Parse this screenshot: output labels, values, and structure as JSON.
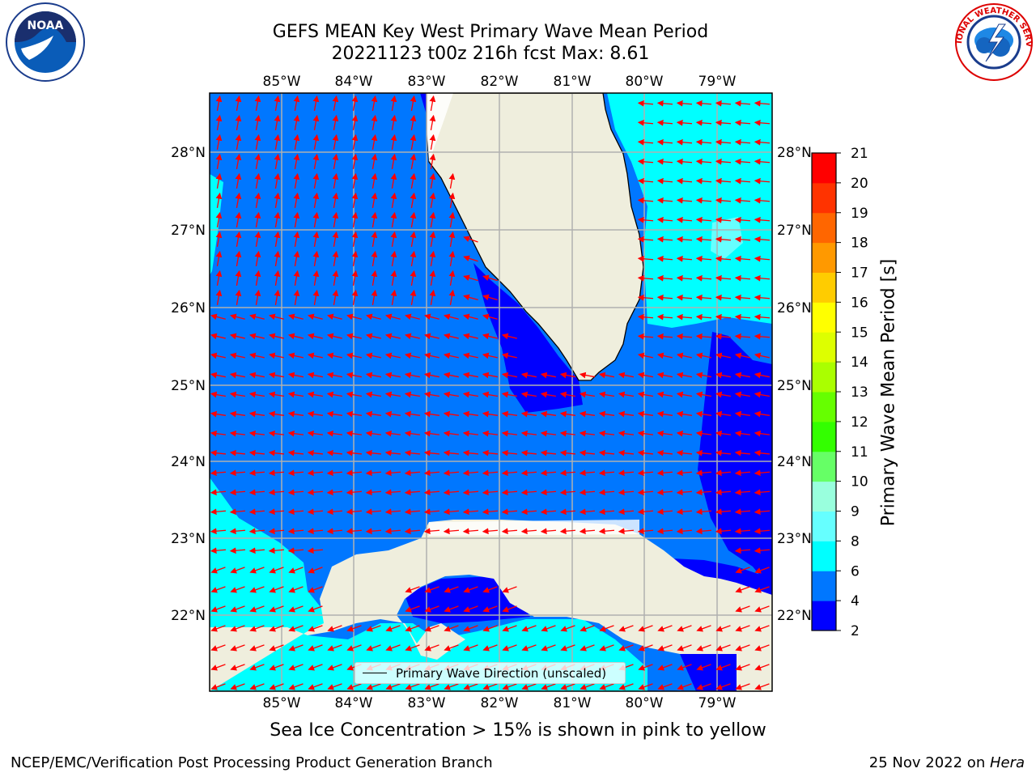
{
  "title": {
    "line1": "GEFS MEAN Key West Primary Wave Mean Period",
    "line2": "20221123 t00z 216h fcst   Max: 8.61"
  },
  "logos": {
    "noaa_text": "NOAA",
    "nws_text": "NATIONAL WEATHER SERVICE"
  },
  "map": {
    "lon_labels": [
      "85°W",
      "84°W",
      "83°W",
      "82°W",
      "81°W",
      "80°W",
      "79°W"
    ],
    "lat_labels": [
      "28°N",
      "27°N",
      "26°N",
      "25°N",
      "24°N",
      "23°N",
      "22°N"
    ],
    "icons": [
      "florida-landmass",
      "cuba-landmass",
      "wave-direction-arrow"
    ],
    "colors": {
      "land": "#efeedd",
      "period_2_4": "#0000ff",
      "period_4_6": "#0077ff",
      "period_6_8": "#00ffff",
      "period_8_9": "#66ffff",
      "arrow": "#ff0000",
      "grid": "#b0b0b0"
    }
  },
  "legend": {
    "label": "Primary Wave Direction (unscaled)"
  },
  "colorbar": {
    "label": "Primary Wave Mean Period [s]",
    "ticks": [
      "2",
      "4",
      "6",
      "8",
      "9",
      "10",
      "11",
      "12",
      "13",
      "14",
      "15",
      "16",
      "17",
      "18",
      "19",
      "20",
      "21"
    ],
    "colors": [
      "#0000ff",
      "#0077ff",
      "#00ffff",
      "#66ffff",
      "#99ffdd",
      "#66ff66",
      "#33ff00",
      "#66ff00",
      "#aaff00",
      "#ddff00",
      "#ffff00",
      "#ffcc00",
      "#ff9900",
      "#ff6600",
      "#ff3300",
      "#ff0000"
    ]
  },
  "notes": {
    "ice": "Sea Ice Concentration > 15% is shown in pink to yellow"
  },
  "footer": {
    "left": "NCEP/EMC/Verification Post Processing Product Generation Branch",
    "date": "25 Nov 2022 on ",
    "machine": "Hera"
  }
}
